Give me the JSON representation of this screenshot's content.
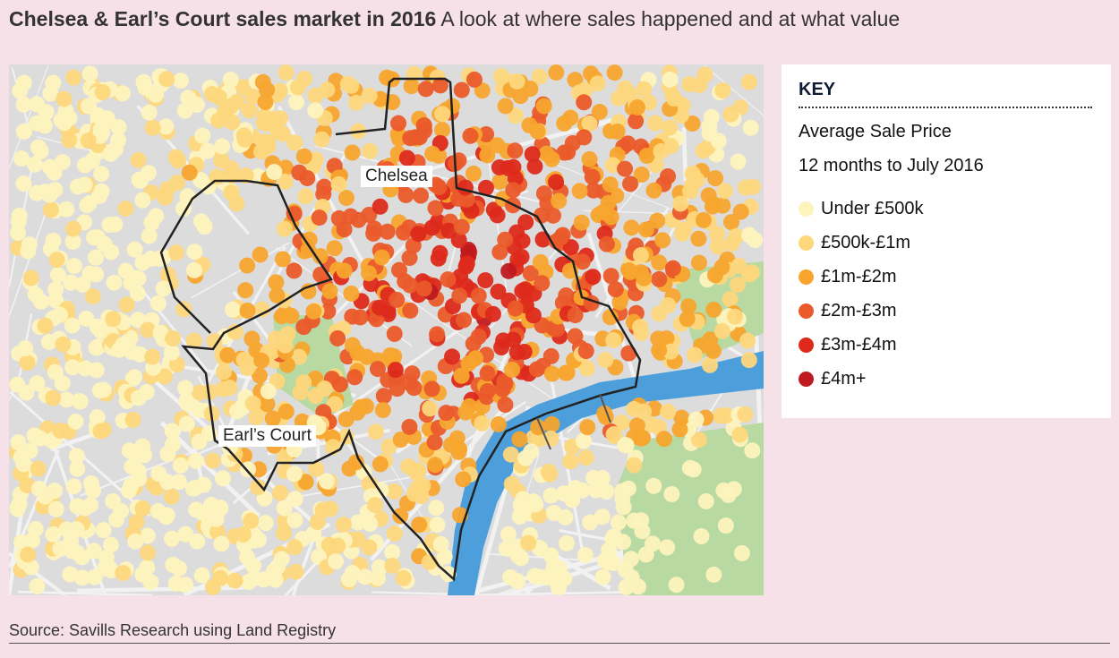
{
  "title": {
    "bold": "Chelsea & Earl’s Court sales market in 2016",
    "rest": " A look at where sales happened and at what value"
  },
  "map": {
    "labels": {
      "chelsea": "Chelsea",
      "earls_court": "Earl’s Court"
    },
    "colors": {
      "background": "#dcdcdc",
      "park": "#b9d9a3",
      "river": "#4d9fdc",
      "boundary": "#222222"
    }
  },
  "key": {
    "heading": "KEY",
    "subtitle1": "Average Sale Price",
    "subtitle2": "12 months to July 2016",
    "items": [
      {
        "label": "Under £500k",
        "color": "#fdf3bd"
      },
      {
        "label": "£500k-£1m",
        "color": "#fdd77c"
      },
      {
        "label": "£1m-£2m",
        "color": "#f7a52e"
      },
      {
        "label": "£2m-£3m",
        "color": "#ea5a2a"
      },
      {
        "label": "£3m-£4m",
        "color": "#dd2a1b"
      },
      {
        "label": "£4m+",
        "color": "#bf1a1f"
      }
    ]
  },
  "source": "Source: Savills Research using Land Registry"
}
